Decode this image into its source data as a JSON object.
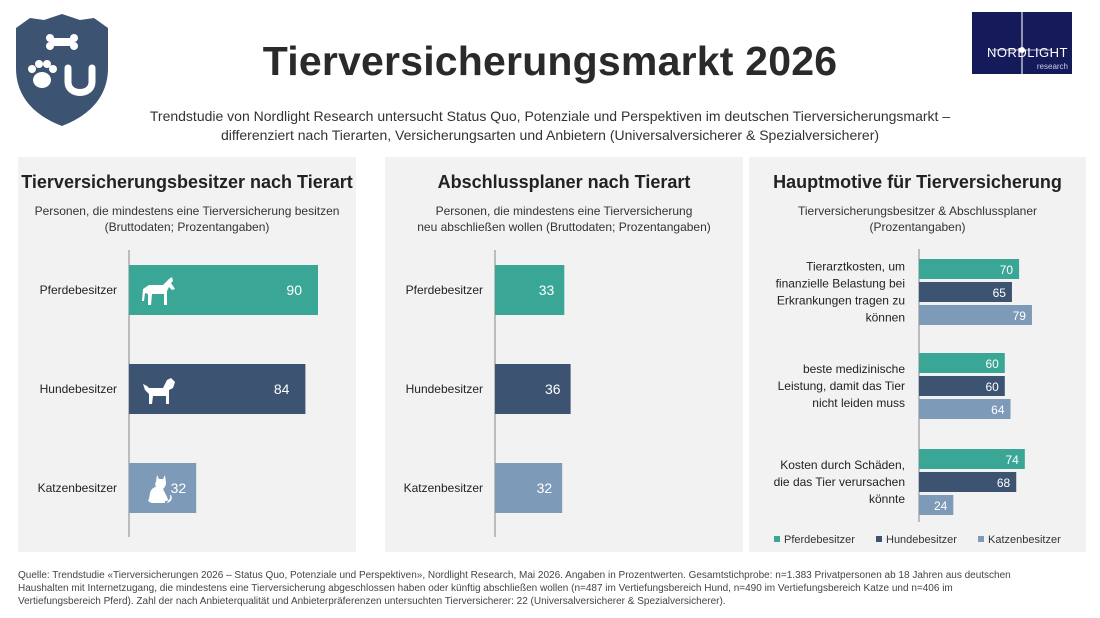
{
  "header": {
    "title": "Tierversicherungsmarkt 2026",
    "subtitle_line1": "Trendstudie von Nordlight Research untersucht Status Quo, Potenziale und Perspektiven im deutschen Tierversicherungsmarkt –",
    "subtitle_line2": "differenziert nach Tierarten, Versicherungsarten und Anbietern (Universalversicherer & Spezialversicherer)"
  },
  "logo": {
    "name": "NORDLIGHT",
    "sub": "research"
  },
  "colors": {
    "pferd": "#3aa796",
    "hund": "#3c5372",
    "katze": "#7e9ab9",
    "panel": "#f2f2f2"
  },
  "chart_data": [
    {
      "type": "bar",
      "title": "Tierversicherungsbesitzer nach Tierart",
      "subtitle_line1": "Personen, die mindestens eine Tierversicherung besitzen",
      "subtitle_line2": "(Bruttodaten; Prozentangaben)",
      "categories": [
        "Pferdebesitzer",
        "Hundebesitzer",
        "Katzenbesitzer"
      ],
      "values": [
        90,
        84,
        32
      ],
      "icons": [
        "horse-icon",
        "dog-icon",
        "cat-icon"
      ],
      "xlim": [
        0,
        100
      ]
    },
    {
      "type": "bar",
      "title": "Abschlussplaner nach Tierart",
      "subtitle_line1": "Personen, die mindestens eine Tierversicherung",
      "subtitle_line2": "neu abschließen wollen (Bruttodaten; Prozentangaben)",
      "categories": [
        "Pferdebesitzer",
        "Hundebesitzer",
        "Katzenbesitzer"
      ],
      "values": [
        33,
        36,
        32
      ],
      "xlim": [
        0,
        100
      ]
    },
    {
      "type": "bar",
      "title": "Hauptmotive für Tierversicherung",
      "subtitle_line1": "Tierversicherungsbesitzer & Abschlussplaner",
      "subtitle_line2": "(Prozentangaben)",
      "categories": [
        [
          "Tierarztkosten, um",
          "finanzielle Belastung bei",
          "Erkrankungen tragen zu",
          "können"
        ],
        [
          "beste medizinische",
          "Leistung, damit das Tier",
          "nicht leiden muss"
        ],
        [
          "Kosten durch Schäden,",
          "die das Tier verursachen",
          "könnte"
        ]
      ],
      "series": [
        {
          "name": "Pferdebesitzer",
          "values": [
            70,
            60,
            74
          ]
        },
        {
          "name": "Hundebesitzer",
          "values": [
            65,
            60,
            68
          ]
        },
        {
          "name": "Katzenbesitzer",
          "values": [
            79,
            64,
            24
          ]
        }
      ],
      "xlim": [
        0,
        100
      ],
      "legend": "bottom"
    }
  ],
  "footnote": {
    "line1": "Quelle: Trendstudie «Tierversicherungen 2026 – Status Quo, Potenziale und Perspektiven», Nordlight Research, Mai 2026. Angaben in Prozentwerten. Gesamtstichprobe: n=1.383 Privatpersonen ab 18 Jahren aus deutschen",
    "line2": "Haushalten mit Internetzugang, die mindestens eine Tierversicherung abgeschlossen haben oder künftig abschließen wollen (n=487 im Vertiefungsbereich Hund, n=490 im Vertiefungsbereich Katze und n=406 im",
    "line3": "Vertiefungsbereich Pferd). Zahl der nach Anbieterqualität und Anbieterpräferenzen untersuchten Tierversicherer: 22 (Universalversicherer & Spezialversicherer)."
  }
}
